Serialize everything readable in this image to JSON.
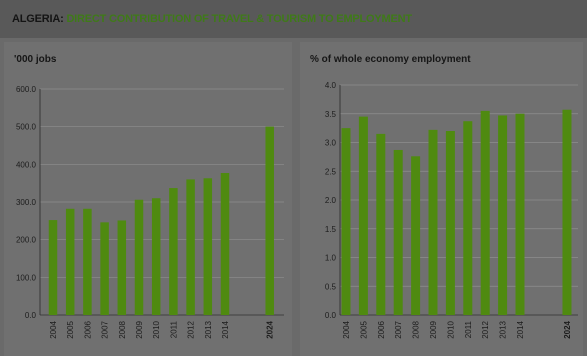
{
  "header": {
    "country": "ALGERIA:",
    "subject": "DIRECT CONTRIBUTION OF  TRAVEL & TOURISM TO EMPLOYMENT"
  },
  "colors": {
    "bar": "#4f8a10",
    "gridline": "#8e8e8e",
    "axis": "#2a2a2a"
  },
  "chart_data": [
    {
      "type": "bar",
      "title": "'000 jobs",
      "categories": [
        "2004",
        "2005",
        "2006",
        "2007",
        "2008",
        "2009",
        "2010",
        "2011",
        "2012",
        "2013",
        "2014",
        "2024"
      ],
      "values": [
        252,
        282,
        282,
        246,
        251,
        306,
        310,
        337,
        360,
        363,
        377,
        500
      ],
      "y_ticks": [
        "0.0",
        "100.0",
        "200.0",
        "300.0",
        "400.0",
        "500.0",
        "600.0"
      ],
      "ylim": [
        0,
        600
      ],
      "grid": true,
      "bold_categories": [
        "2024"
      ]
    },
    {
      "type": "bar",
      "title": "% of whole economy employment",
      "categories": [
        "2004",
        "2005",
        "2006",
        "2007",
        "2008",
        "2009",
        "2010",
        "2011",
        "2012",
        "2013",
        "2014",
        "2024"
      ],
      "values": [
        3.25,
        3.45,
        3.15,
        2.87,
        2.76,
        3.22,
        3.2,
        3.37,
        3.55,
        3.47,
        3.5,
        3.57
      ],
      "y_ticks": [
        "0.0",
        "0.5",
        "1.0",
        "1.5",
        "2.0",
        "2.5",
        "3.0",
        "3.5",
        "4.0"
      ],
      "ylim": [
        0,
        4
      ],
      "grid": true,
      "bold_categories": [
        "2024"
      ]
    }
  ]
}
